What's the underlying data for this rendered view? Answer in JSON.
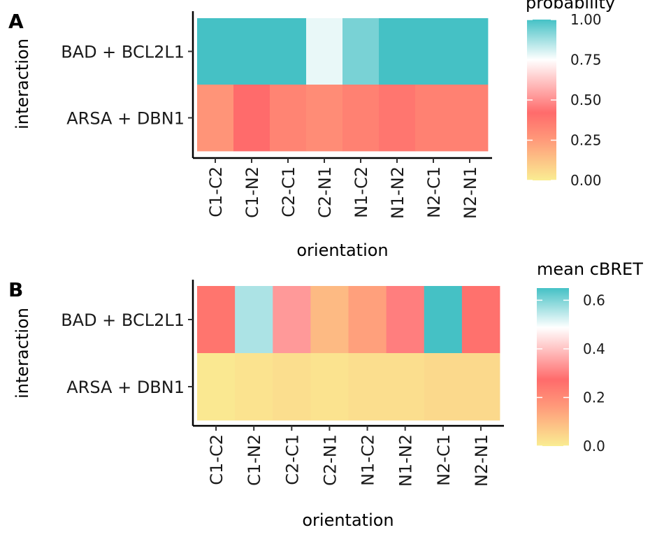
{
  "gradient": {
    "stops": [
      "#FAED92",
      "#FF9A7A",
      "#FF6B6B",
      "#FFFFFF",
      "#45C1C5"
    ],
    "stop_positions": [
      0.0,
      0.25,
      0.42,
      0.75,
      1.0
    ]
  },
  "chart_data": [
    {
      "type": "heatmap",
      "panel_label": "A",
      "title": "",
      "xlabel": "orientation",
      "ylabel": "interaction",
      "categories": [
        "C1-C2",
        "C1-N2",
        "C2-C1",
        "C2-N1",
        "N1-C2",
        "N1-N2",
        "N2-C1",
        "N2-N1"
      ],
      "rows": [
        "BAD + BCL2L1",
        "ARSA + DBN1"
      ],
      "legend_title": "probability",
      "legend_ticks": [
        "0.00",
        "0.25",
        "0.50",
        "0.75",
        "1.00"
      ],
      "legend_tick_values": [
        0,
        0.25,
        0.5,
        0.75,
        1
      ],
      "value_range": [
        0,
        1
      ],
      "series": [
        {
          "name": "BAD + BCL2L1",
          "values": [
            1.0,
            1.0,
            1.0,
            0.78,
            0.93,
            1.0,
            1.0,
            1.0
          ]
        },
        {
          "name": "ARSA + DBN1",
          "values": [
            0.27,
            0.42,
            0.33,
            0.3,
            0.34,
            0.38,
            0.34,
            0.34
          ]
        }
      ]
    },
    {
      "type": "heatmap",
      "panel_label": "B",
      "title": "",
      "xlabel": "orientation",
      "ylabel": "interaction",
      "categories": [
        "C1-C2",
        "C1-N2",
        "C2-C1",
        "C2-N1",
        "N1-C2",
        "N1-N2",
        "N2-C1",
        "N2-N1"
      ],
      "rows": [
        "BAD + BCL2L1",
        "ARSA + DBN1"
      ],
      "legend_title": "mean cBRET",
      "legend_ticks": [
        "0.0",
        "0.2",
        "0.4",
        "0.6"
      ],
      "legend_tick_values": [
        0,
        0.2,
        0.4,
        0.6
      ],
      "value_range": [
        0,
        0.65
      ],
      "series": [
        {
          "name": "BAD + BCL2L1",
          "values": [
            0.25,
            0.56,
            0.34,
            0.1,
            0.15,
            0.3,
            0.65,
            0.26
          ]
        },
        {
          "name": "ARSA + DBN1",
          "values": [
            0.01,
            0.02,
            0.03,
            0.02,
            0.03,
            0.03,
            0.04,
            0.04
          ]
        }
      ]
    }
  ]
}
